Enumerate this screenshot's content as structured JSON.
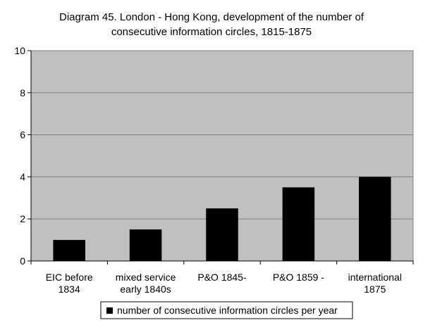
{
  "chart_data": {
    "type": "bar",
    "title_lines": [
      "Diagram 45. London - Hong Kong, development of the number of",
      "consecutive information circles, 1815-1875"
    ],
    "categories": [
      [
        "EIC before",
        "1834"
      ],
      [
        "mixed service",
        "early 1840s"
      ],
      [
        "P&O 1845-"
      ],
      [
        "P&O 1859 -"
      ],
      [
        "international",
        "1875"
      ]
    ],
    "series": [
      {
        "name": "number of consecutive information circles per year",
        "color": "#000000",
        "values": [
          1.0,
          1.5,
          2.5,
          3.5,
          4.0
        ]
      }
    ],
    "ylim": [
      0,
      10
    ],
    "yticks": [
      0,
      2,
      4,
      6,
      8,
      10
    ],
    "grid": true,
    "legend_position": "bottom",
    "plot_background": "#c0c0c0",
    "gridline_color": "#808080"
  }
}
